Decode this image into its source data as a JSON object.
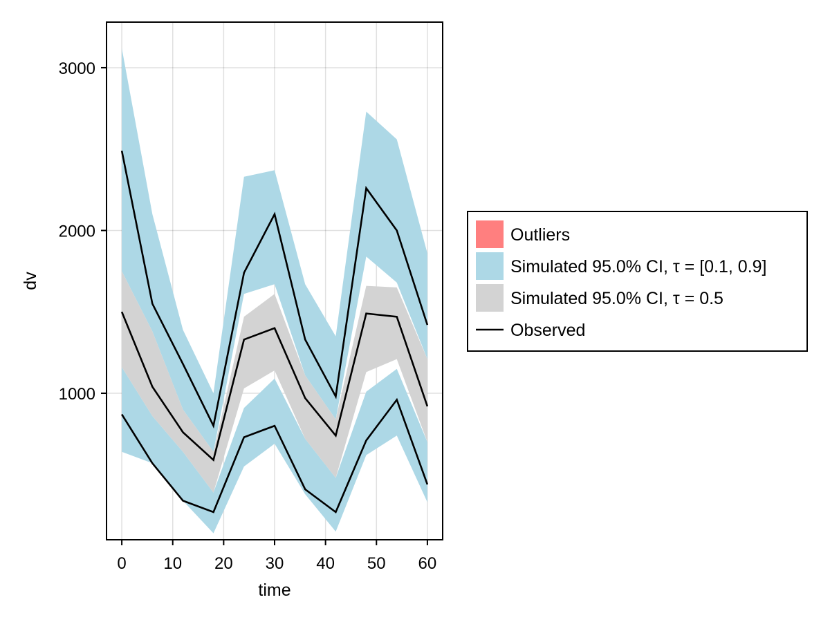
{
  "chart_data": {
    "type": "area",
    "title": "",
    "xlabel": "time",
    "ylabel": "dv",
    "xlim": [
      -3,
      63
    ],
    "ylim": [
      100,
      3280
    ],
    "xticks": [
      0,
      10,
      20,
      30,
      40,
      50,
      60
    ],
    "yticks": [
      1000,
      2000,
      3000
    ],
    "x": [
      0,
      6,
      12,
      18,
      24,
      30,
      36,
      42,
      48,
      54,
      60
    ],
    "bands": [
      {
        "name": "Simulated 95.0% CI, τ = [0.1, 0.9] (upper)",
        "color": "#add8e6",
        "lower": [
          1750,
          1380,
          900,
          640,
          1610,
          1670,
          1110,
          840,
          1840,
          1680,
          1210
        ],
        "upper": [
          3120,
          2100,
          1390,
          1000,
          2330,
          2370,
          1670,
          1350,
          2730,
          2560,
          1860
        ]
      },
      {
        "name": "Simulated 95.0% CI, τ = [0.1, 0.9] (lower)",
        "color": "#add8e6",
        "lower": [
          640,
          570,
          340,
          140,
          550,
          690,
          380,
          150,
          620,
          740,
          330
        ],
        "upper": [
          1160,
          860,
          640,
          390,
          910,
          1090,
          720,
          480,
          1010,
          1150,
          700
        ]
      },
      {
        "name": "Simulated 95.0% CI, τ = 0.5",
        "color": "#d3d3d3",
        "lower": [
          1160,
          860,
          640,
          390,
          1030,
          1140,
          720,
          480,
          1130,
          1210,
          700
        ],
        "upper": [
          1750,
          1380,
          900,
          640,
          1470,
          1610,
          1110,
          840,
          1660,
          1650,
          1210
        ]
      }
    ],
    "series": [
      {
        "name": "Observed (upper)",
        "color": "#000000",
        "values": [
          2490,
          1550,
          1180,
          800,
          1740,
          2100,
          1330,
          980,
          2260,
          2000,
          1420
        ]
      },
      {
        "name": "Observed (median)",
        "color": "#000000",
        "values": [
          1500,
          1040,
          760,
          590,
          1330,
          1400,
          970,
          740,
          1490,
          1470,
          920
        ]
      },
      {
        "name": "Observed (lower)",
        "color": "#000000",
        "values": [
          870,
          570,
          340,
          270,
          730,
          800,
          410,
          270,
          710,
          960,
          440
        ]
      }
    ],
    "legend": {
      "placement": "right",
      "entries": [
        {
          "label": "Outliers",
          "kind": "patch",
          "color": "#ff7f7f"
        },
        {
          "label": "Simulated 95.0% CI, τ = [0.1, 0.9]",
          "kind": "patch",
          "color": "#add8e6"
        },
        {
          "label": "Simulated 95.0% CI, τ = 0.5",
          "kind": "patch",
          "color": "#d3d3d3"
        },
        {
          "label": "Observed",
          "kind": "line",
          "color": "#000000"
        }
      ]
    },
    "grid": true
  }
}
